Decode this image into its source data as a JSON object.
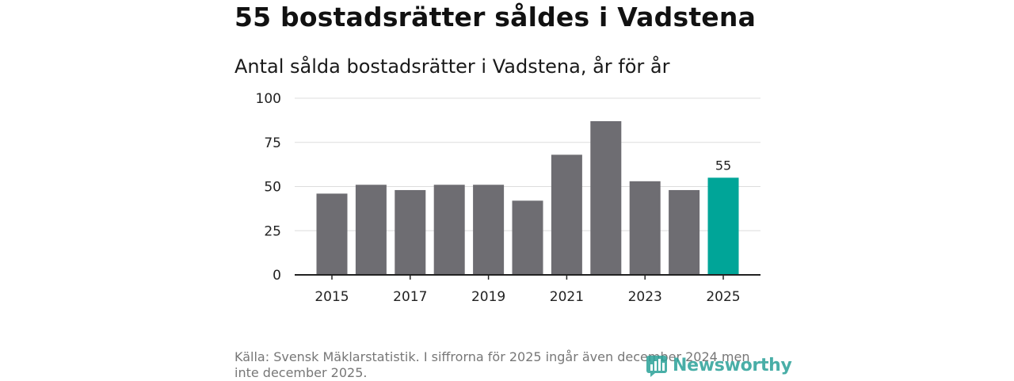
{
  "headline": "55 bostadsrätter såldes i Vadstena",
  "chart_data": {
    "type": "bar",
    "title": "Antal sålda bostadsrätter i Vadstena, år för år",
    "categories": [
      "2015",
      "2016",
      "2017",
      "2018",
      "2019",
      "2020",
      "2021",
      "2022",
      "2023",
      "2024",
      "2025"
    ],
    "values": [
      46,
      51,
      48,
      51,
      51,
      42,
      68,
      87,
      53,
      48,
      55
    ],
    "x_tick_labels": [
      "2015",
      "2017",
      "2019",
      "2021",
      "2023",
      "2025"
    ],
    "ylim": [
      0,
      100
    ],
    "y_ticks": [
      0,
      25,
      50,
      75,
      100
    ],
    "grid": true,
    "bar_color": "#6e6d72",
    "highlight_color": "#00a598",
    "highlight_category": "2025",
    "data_labels": [
      {
        "category": "2025",
        "text": "55"
      }
    ]
  },
  "source": "Källa: Svensk Mäklarstatistik. I siffrorna för 2025 ingår även december 2024 men inte december 2025.",
  "logo": {
    "text": "Newsworthy",
    "icon": "newsworthy-bar-icon",
    "color": "#2aa198"
  }
}
